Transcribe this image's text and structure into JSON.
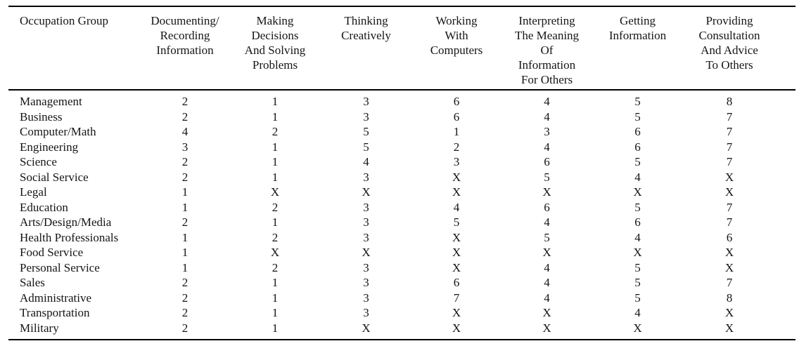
{
  "table": {
    "columns": [
      {
        "id": "occupation-group",
        "lines": [
          "Occupation Group"
        ]
      },
      {
        "id": "documenting-recording-information",
        "lines": [
          "Documenting/",
          "Recording",
          "Information"
        ]
      },
      {
        "id": "making-decisions-and-solving-problems",
        "lines": [
          "Making",
          "Decisions",
          "And Solving",
          "Problems"
        ]
      },
      {
        "id": "thinking-creatively",
        "lines": [
          "Thinking",
          "Creatively"
        ]
      },
      {
        "id": "working-with-computers",
        "lines": [
          "Working",
          "With",
          "Computers"
        ]
      },
      {
        "id": "interpreting-the-meaning-of-information-for-others",
        "lines": [
          "Interpreting",
          "The Meaning",
          "Of",
          "Information",
          "For Others"
        ]
      },
      {
        "id": "getting-information",
        "lines": [
          "Getting",
          "Information"
        ]
      },
      {
        "id": "providing-consultation-and-advice-to-others",
        "lines": [
          "Providing",
          "Consultation",
          "And Advice",
          "To Others"
        ]
      }
    ],
    "rows": [
      {
        "group": "Management",
        "values": [
          "2",
          "1",
          "3",
          "6",
          "4",
          "5",
          "8"
        ]
      },
      {
        "group": "Business",
        "values": [
          "2",
          "1",
          "3",
          "6",
          "4",
          "5",
          "7"
        ]
      },
      {
        "group": "Computer/Math",
        "values": [
          "4",
          "2",
          "5",
          "1",
          "3",
          "6",
          "7"
        ]
      },
      {
        "group": "Engineering",
        "values": [
          "3",
          "1",
          "5",
          "2",
          "4",
          "6",
          "7"
        ]
      },
      {
        "group": "Science",
        "values": [
          "2",
          "1",
          "4",
          "3",
          "6",
          "5",
          "7"
        ]
      },
      {
        "group": "Social Service",
        "values": [
          "2",
          "1",
          "3",
          "X",
          "5",
          "4",
          "X"
        ]
      },
      {
        "group": "Legal",
        "values": [
          "1",
          "X",
          "X",
          "X",
          "X",
          "X",
          "X"
        ]
      },
      {
        "group": "Education",
        "values": [
          "1",
          "2",
          "3",
          "4",
          "6",
          "5",
          "7"
        ]
      },
      {
        "group": "Arts/Design/Media",
        "values": [
          "2",
          "1",
          "3",
          "5",
          "4",
          "6",
          "7"
        ]
      },
      {
        "group": "Health Professionals",
        "values": [
          "1",
          "2",
          "3",
          "X",
          "5",
          "4",
          "6"
        ]
      },
      {
        "group": "Food Service",
        "values": [
          "1",
          "X",
          "X",
          "X",
          "X",
          "X",
          "X"
        ]
      },
      {
        "group": "Personal Service",
        "values": [
          "1",
          "2",
          "3",
          "X",
          "4",
          "5",
          "X"
        ]
      },
      {
        "group": "Sales",
        "values": [
          "2",
          "1",
          "3",
          "6",
          "4",
          "5",
          "7"
        ]
      },
      {
        "group": "Administrative",
        "values": [
          "2",
          "1",
          "3",
          "7",
          "4",
          "5",
          "8"
        ]
      },
      {
        "group": "Transportation",
        "values": [
          "2",
          "1",
          "3",
          "X",
          "X",
          "4",
          "X"
        ]
      },
      {
        "group": "Military",
        "values": [
          "2",
          "1",
          "X",
          "X",
          "X",
          "X",
          "X"
        ]
      }
    ],
    "missing_marker": "X"
  },
  "colors": {
    "background": "#ffffff",
    "text": "#151515",
    "rule": "#000000"
  }
}
